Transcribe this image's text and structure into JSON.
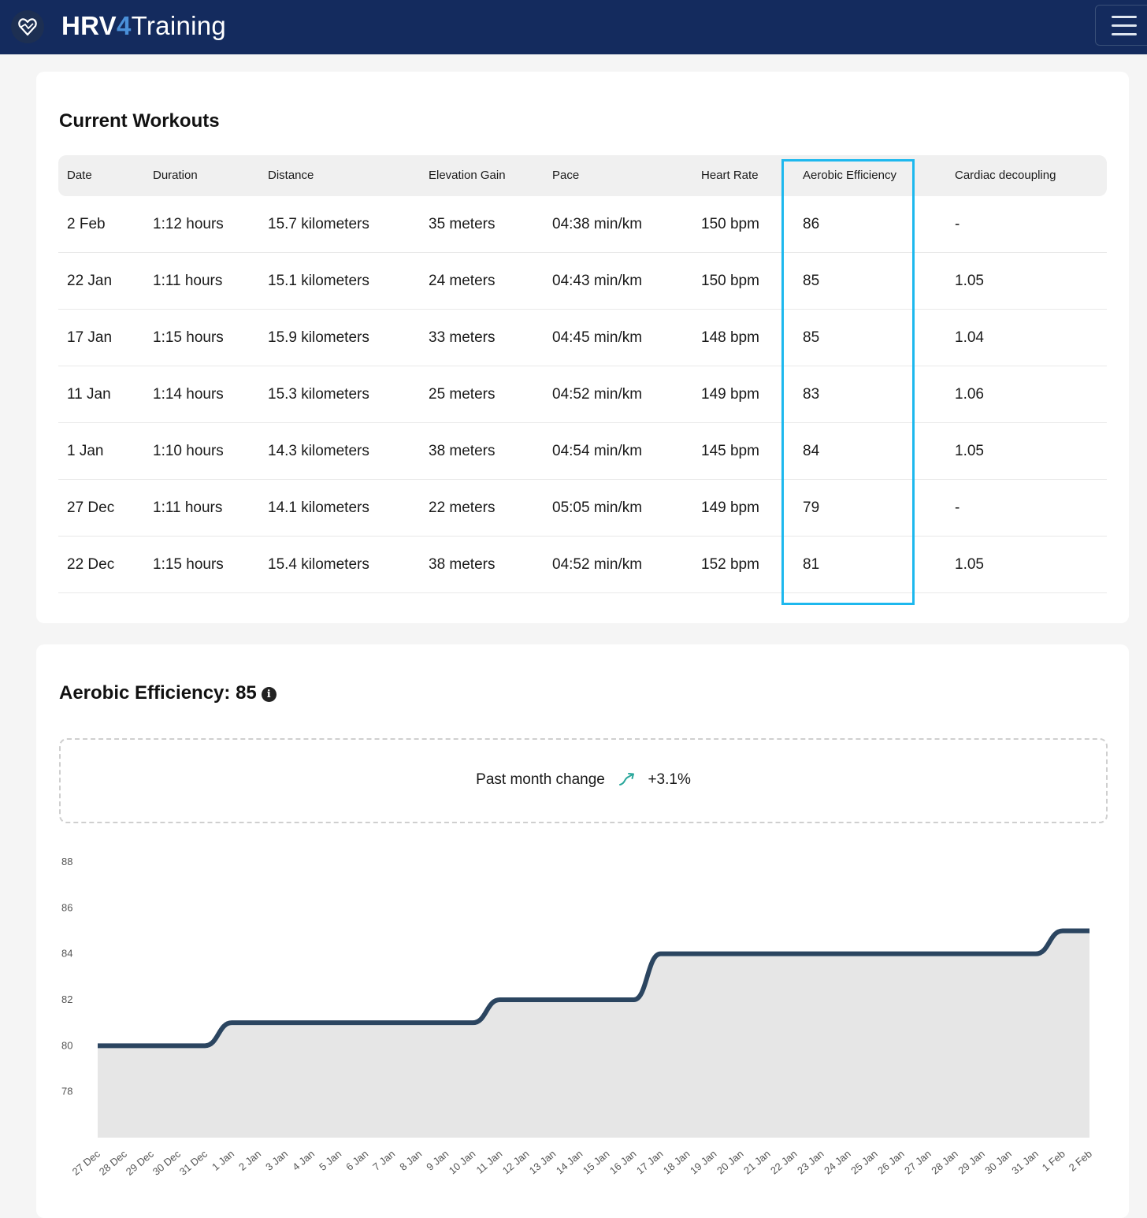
{
  "app": {
    "brand_part1": "HRV",
    "brand_part2": "4",
    "brand_part3": "Training"
  },
  "workouts": {
    "title": "Current Workouts",
    "columns": [
      "Date",
      "Duration",
      "Distance",
      "Elevation Gain",
      "Pace",
      "Heart Rate",
      "Aerobic Efficiency",
      "Cardiac decoupling"
    ],
    "rows": [
      [
        "2 Feb",
        "1:12 hours",
        "15.7 kilometers",
        "35 meters",
        "04:38 min/km",
        "150 bpm",
        "86",
        "-"
      ],
      [
        "22 Jan",
        "1:11 hours",
        "15.1 kilometers",
        "24 meters",
        "04:43 min/km",
        "150 bpm",
        "85",
        "1.05"
      ],
      [
        "17 Jan",
        "1:15 hours",
        "15.9 kilometers",
        "33 meters",
        "04:45 min/km",
        "148 bpm",
        "85",
        "1.04"
      ],
      [
        "11 Jan",
        "1:14 hours",
        "15.3 kilometers",
        "25 meters",
        "04:52 min/km",
        "149 bpm",
        "83",
        "1.06"
      ],
      [
        "1 Jan",
        "1:10 hours",
        "14.3 kilometers",
        "38 meters",
        "04:54 min/km",
        "145 bpm",
        "84",
        "1.05"
      ],
      [
        "27 Dec",
        "1:11 hours",
        "14.1 kilometers",
        "22 meters",
        "05:05 min/km",
        "149 bpm",
        "79",
        "-"
      ],
      [
        "22 Dec",
        "1:15 hours",
        "15.4 kilometers",
        "38 meters",
        "04:52 min/km",
        "152 bpm",
        "81",
        "1.05"
      ]
    ],
    "highlight_color": "#1db8ee"
  },
  "efficiency": {
    "title": "Aerobic Efficiency: 85",
    "info_icon": "info-icon",
    "change_label": "Past month change",
    "change_icon": "trend-up-icon",
    "change_value": "+3.1%",
    "accent_color": "#2aa79b"
  },
  "chart_data": {
    "type": "area",
    "x": [
      "27 Dec",
      "28 Dec",
      "29 Dec",
      "30 Dec",
      "31 Dec",
      "1 Jan",
      "2 Jan",
      "3 Jan",
      "4 Jan",
      "5 Jan",
      "6 Jan",
      "7 Jan",
      "8 Jan",
      "9 Jan",
      "10 Jan",
      "11 Jan",
      "12 Jan",
      "13 Jan",
      "14 Jan",
      "15 Jan",
      "16 Jan",
      "17 Jan",
      "18 Jan",
      "19 Jan",
      "20 Jan",
      "21 Jan",
      "22 Jan",
      "23 Jan",
      "24 Jan",
      "25 Jan",
      "26 Jan",
      "27 Jan",
      "28 Jan",
      "29 Jan",
      "30 Jan",
      "31 Jan",
      "1 Feb",
      "2 Feb"
    ],
    "values": [
      80,
      80,
      80,
      80,
      80,
      81,
      81,
      81,
      81,
      81,
      81,
      81,
      81,
      81,
      81,
      82,
      82,
      82,
      82,
      82,
      82,
      84,
      84,
      84,
      84,
      84,
      84,
      84,
      84,
      84,
      84,
      84,
      84,
      84,
      84,
      84,
      85,
      85
    ],
    "y_ticks": [
      78,
      80,
      82,
      84,
      86,
      88
    ],
    "ylim": [
      76,
      88
    ],
    "line_color": "#2b4560",
    "fill_color": "#e6e6e6",
    "grid": false
  }
}
